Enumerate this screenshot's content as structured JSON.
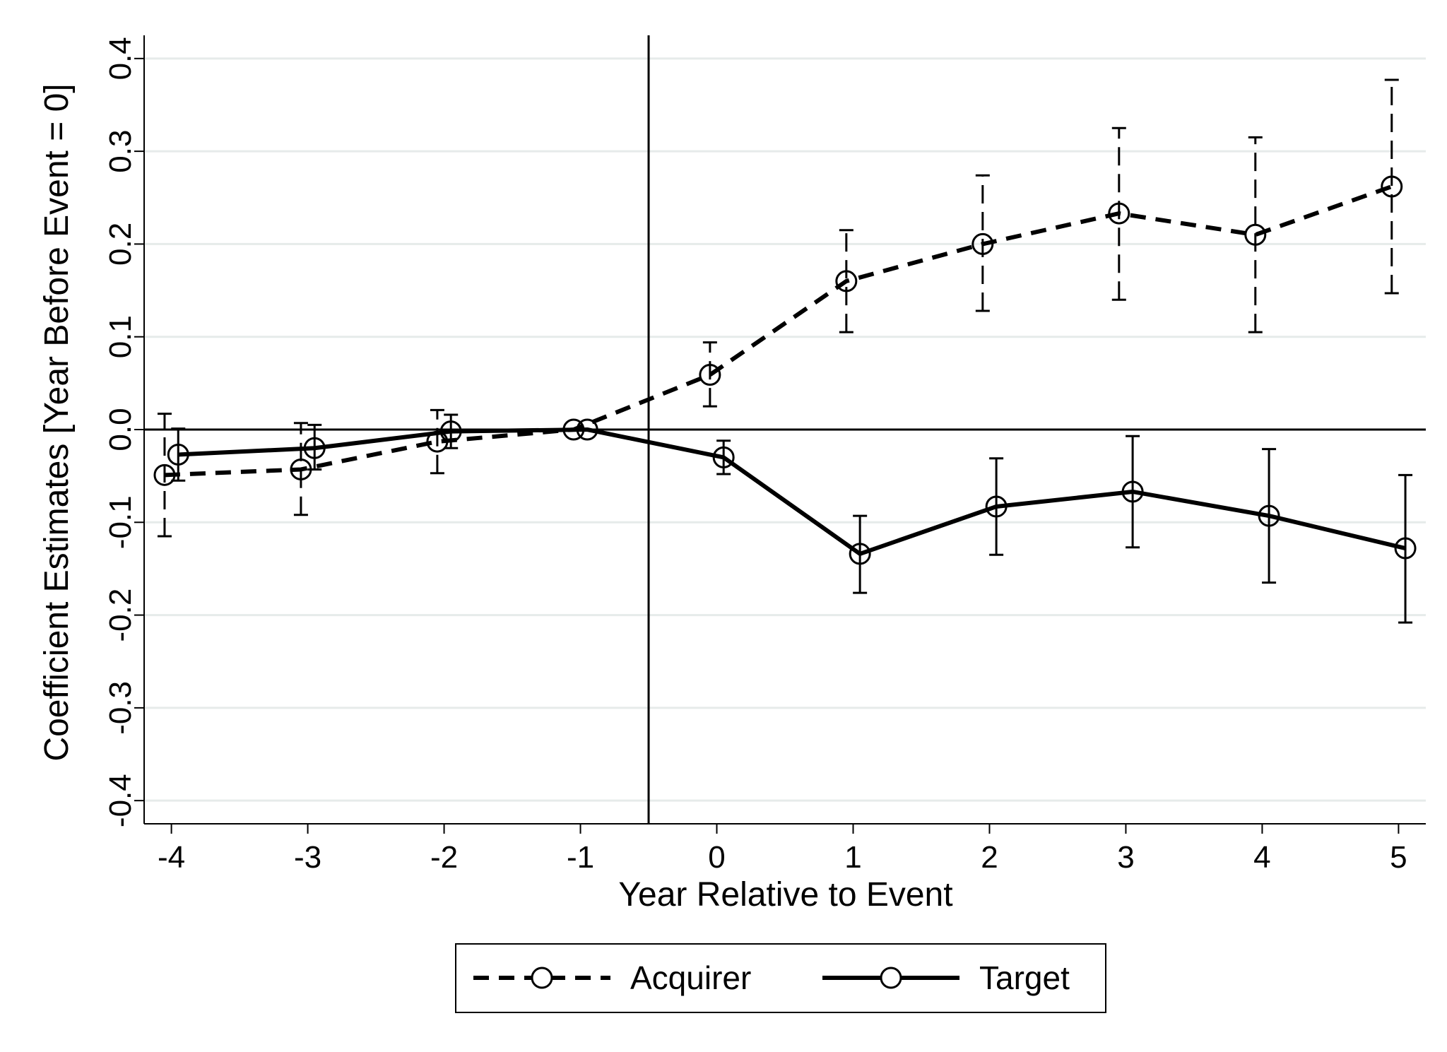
{
  "chart_data": {
    "type": "line",
    "title": "",
    "xlabel": "Year Relative to Event",
    "ylabel": "Coefficient Estimates [Year Before Event = 0]",
    "x": [
      -4,
      -3,
      -2,
      -1,
      0,
      1,
      2,
      3,
      4,
      5
    ],
    "x_tick_labels": [
      "-4",
      "-3",
      "-2",
      "-1",
      "0",
      "1",
      "2",
      "3",
      "4",
      "5"
    ],
    "y_tick_labels": [
      "-0.4",
      "-0.3",
      "-0.2",
      "-0.1",
      "0.0",
      "0.1",
      "0.2",
      "0.3",
      "0.4"
    ],
    "y_ticks": [
      -0.4,
      -0.3,
      -0.2,
      -0.1,
      0.0,
      0.1,
      0.2,
      0.3,
      0.4
    ],
    "xlim": [
      -4.2,
      5.2
    ],
    "ylim": [
      -0.425,
      0.425
    ],
    "grid": "horizontal",
    "reference_lines": {
      "x": -0.5,
      "y": 0
    },
    "legend": {
      "placement": "bottom"
    },
    "series": [
      {
        "name": "Acquirer",
        "style": "dashed",
        "color": "#000000",
        "x_offset": -0.05,
        "values": [
          -0.049,
          -0.043,
          -0.013,
          0.0,
          0.059,
          0.16,
          0.2,
          0.233,
          0.21,
          0.262
        ],
        "ci_low": [
          -0.115,
          -0.092,
          -0.047,
          0.0,
          0.025,
          0.105,
          0.128,
          0.14,
          0.105,
          0.147
        ],
        "ci_high": [
          0.017,
          0.007,
          0.021,
          0.0,
          0.094,
          0.215,
          0.274,
          0.325,
          0.315,
          0.377
        ]
      },
      {
        "name": "Target",
        "style": "solid",
        "color": "#000000",
        "x_offset": 0.05,
        "values": [
          -0.027,
          -0.02,
          -0.002,
          0.0,
          -0.03,
          -0.134,
          -0.083,
          -0.067,
          -0.093,
          -0.128
        ],
        "ci_low": [
          -0.055,
          -0.043,
          -0.02,
          0.0,
          -0.048,
          -0.176,
          -0.135,
          -0.127,
          -0.165,
          -0.208
        ],
        "ci_high": [
          0.001,
          0.005,
          0.016,
          0.0,
          -0.012,
          -0.093,
          -0.031,
          -0.007,
          -0.021,
          -0.049
        ]
      }
    ]
  }
}
